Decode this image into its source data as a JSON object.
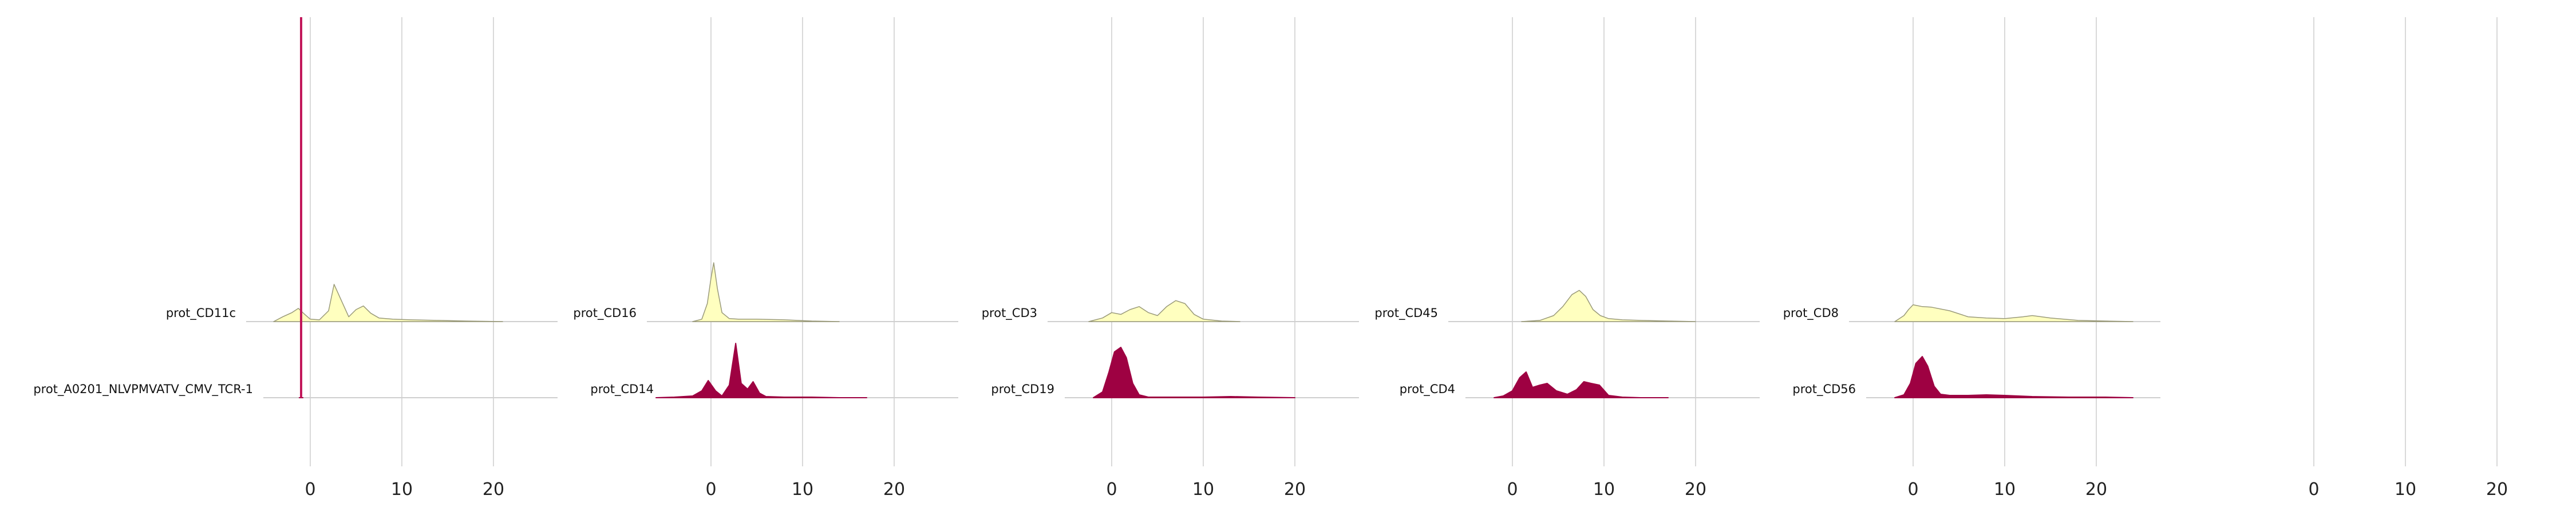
{
  "chart_data": {
    "type": "area",
    "title": "",
    "xlabel": "",
    "ylabel": "",
    "xlim": [
      -7,
      27
    ],
    "xticks": [
      0,
      10,
      20
    ],
    "grid": true,
    "colors": {
      "top_row": "#ffffbf",
      "bottom_row": "#9e0142",
      "grid": "#d9d9d9",
      "baseline": "#cfcfcf",
      "marker": "#c2185b"
    },
    "marker_line": {
      "panel": 0,
      "x": -1
    },
    "panels": [
      {
        "series": [
          {
            "name": "prot_CD11c",
            "row": "top",
            "x": [
              -4,
              -3,
              -2,
              -1.3,
              -0.6,
              0,
              1,
              2,
              2.6,
              3.4,
              4.2,
              5,
              5.8,
              6.6,
              7.5,
              9,
              11,
              14,
              17,
              21
            ],
            "y": [
              0.0,
              0.08,
              0.15,
              0.22,
              0.12,
              0.04,
              0.03,
              0.18,
              0.62,
              0.35,
              0.08,
              0.2,
              0.26,
              0.14,
              0.06,
              0.04,
              0.03,
              0.02,
              0.01,
              0.0
            ]
          },
          {
            "name": "prot_A0201_NLVPMVATV_CMV_TCR-1",
            "row": "bottom",
            "x": [
              -1.2,
              -1.1,
              -1,
              -0.9,
              -0.8
            ],
            "y": [
              0,
              0,
              0,
              0,
              0
            ]
          }
        ]
      },
      {
        "series": [
          {
            "name": "prot_CD16",
            "row": "top",
            "x": [
              -2,
              -1,
              -0.4,
              0,
              0.3,
              0.7,
              1.2,
              2,
              3,
              5,
              8,
              11,
              14
            ],
            "y": [
              0.0,
              0.04,
              0.3,
              0.72,
              0.98,
              0.55,
              0.15,
              0.05,
              0.04,
              0.04,
              0.03,
              0.01,
              0.0
            ]
          },
          {
            "name": "prot_CD14",
            "row": "bottom",
            "x": [
              -6,
              -4,
              -2,
              -1,
              -0.3,
              0.5,
              1.2,
              2,
              2.7,
              3.3,
              4,
              4.6,
              5.3,
              6,
              8,
              11,
              14,
              17
            ],
            "y": [
              0.0,
              0.01,
              0.03,
              0.12,
              0.3,
              0.12,
              0.03,
              0.22,
              0.95,
              0.25,
              0.15,
              0.28,
              0.08,
              0.02,
              0.01,
              0.01,
              0.0,
              0.0
            ]
          }
        ]
      },
      {
        "series": [
          {
            "name": "prot_CD3",
            "row": "top",
            "x": [
              -2.5,
              -1,
              0,
              1,
              2,
              3,
              4,
              5,
              6,
              7,
              8,
              9,
              10,
              12,
              14
            ],
            "y": [
              0.0,
              0.06,
              0.15,
              0.12,
              0.2,
              0.25,
              0.15,
              0.1,
              0.25,
              0.35,
              0.3,
              0.12,
              0.04,
              0.01,
              0.0
            ]
          },
          {
            "name": "prot_CD19",
            "row": "bottom",
            "x": [
              -2,
              -1,
              -0.3,
              0.3,
              1,
              1.6,
              2.3,
              3,
              4,
              6,
              10,
              13,
              16,
              20
            ],
            "y": [
              0.0,
              0.1,
              0.45,
              0.8,
              0.88,
              0.7,
              0.25,
              0.05,
              0.01,
              0.01,
              0.01,
              0.02,
              0.01,
              0.0
            ]
          }
        ]
      },
      {
        "series": [
          {
            "name": "prot_CD45",
            "row": "top",
            "x": [
              1,
              3,
              4.5,
              5.5,
              6.5,
              7.3,
              8,
              8.8,
              9.6,
              10.5,
              12,
              14,
              17,
              20
            ],
            "y": [
              0.0,
              0.02,
              0.1,
              0.25,
              0.45,
              0.52,
              0.42,
              0.2,
              0.1,
              0.05,
              0.03,
              0.02,
              0.01,
              0.0
            ]
          },
          {
            "name": "prot_CD4",
            "row": "bottom",
            "x": [
              -2,
              -1,
              0,
              0.8,
              1.5,
              2.2,
              3,
              3.8,
              4.8,
              6,
              7,
              7.8,
              8.6,
              9.5,
              10.5,
              12,
              14,
              17
            ],
            "y": [
              0.0,
              0.03,
              0.12,
              0.35,
              0.45,
              0.18,
              0.22,
              0.25,
              0.12,
              0.06,
              0.14,
              0.28,
              0.25,
              0.22,
              0.04,
              0.01,
              0.0,
              0.0
            ]
          }
        ]
      },
      {
        "series": [
          {
            "name": "prot_CD8",
            "row": "top",
            "x": [
              -2,
              -1,
              -0.5,
              0,
              1,
              2,
              4,
              6,
              8,
              10,
              12,
              13,
              15,
              18,
              21,
              24
            ],
            "y": [
              0.0,
              0.1,
              0.2,
              0.28,
              0.25,
              0.24,
              0.18,
              0.08,
              0.06,
              0.05,
              0.08,
              0.1,
              0.06,
              0.02,
              0.01,
              0.0
            ]
          },
          {
            "name": "prot_CD56",
            "row": "bottom",
            "x": [
              -2,
              -1,
              -0.3,
              0.3,
              1,
              1.6,
              2.3,
              3,
              4,
              6,
              8,
              10,
              13,
              17,
              21,
              24
            ],
            "y": [
              0.0,
              0.05,
              0.25,
              0.6,
              0.72,
              0.55,
              0.2,
              0.06,
              0.04,
              0.04,
              0.05,
              0.04,
              0.02,
              0.01,
              0.01,
              0.0
            ]
          }
        ]
      },
      {
        "series": []
      }
    ]
  }
}
